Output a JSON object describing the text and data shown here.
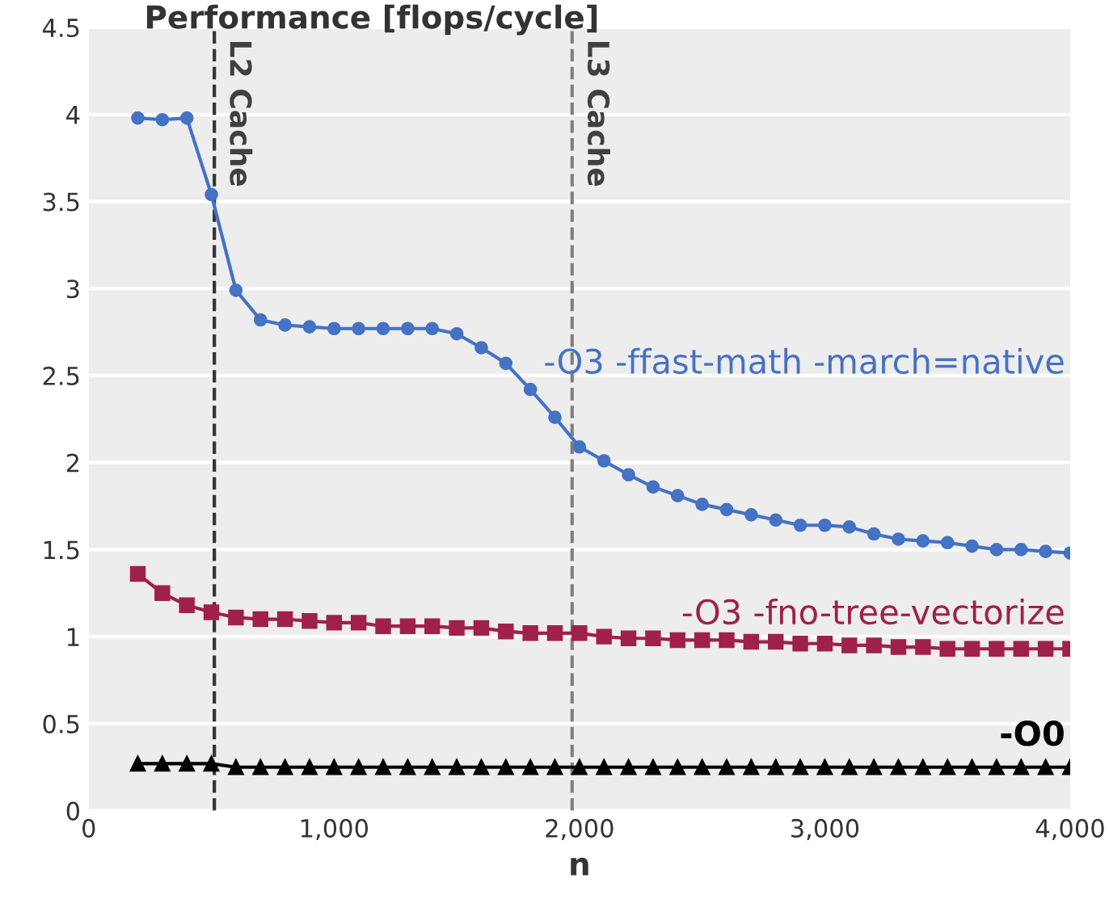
{
  "chart_data": {
    "type": "line",
    "title": "Performance [flops/cycle]",
    "xlabel": "n",
    "x": [
      200,
      300,
      400,
      500,
      600,
      700,
      800,
      900,
      1000,
      1100,
      1200,
      1300,
      1400,
      1500,
      1600,
      1700,
      1800,
      1900,
      2000,
      2100,
      2200,
      2300,
      2400,
      2500,
      2600,
      2700,
      2800,
      2900,
      3000,
      3100,
      3200,
      3300,
      3400,
      3500,
      3600,
      3700,
      3800,
      3900,
      4000
    ],
    "series": [
      {
        "name": "-O3 -ffast-math -march=native",
        "color": "#4472c4",
        "marker": "circle",
        "values": [
          3.98,
          3.97,
          3.98,
          3.54,
          2.99,
          2.82,
          2.79,
          2.78,
          2.77,
          2.77,
          2.77,
          2.77,
          2.77,
          2.74,
          2.66,
          2.57,
          2.42,
          2.26,
          2.09,
          2.01,
          1.93,
          1.86,
          1.81,
          1.76,
          1.73,
          1.7,
          1.67,
          1.64,
          1.64,
          1.63,
          1.59,
          1.56,
          1.55,
          1.54,
          1.52,
          1.5,
          1.5,
          1.49,
          1.48
        ]
      },
      {
        "name": "-O3 -fno-tree-vectorize",
        "color": "#a0204c",
        "marker": "square",
        "values": [
          1.36,
          1.25,
          1.18,
          1.14,
          1.11,
          1.1,
          1.1,
          1.09,
          1.08,
          1.08,
          1.06,
          1.06,
          1.06,
          1.05,
          1.05,
          1.03,
          1.02,
          1.02,
          1.02,
          1.0,
          0.99,
          0.99,
          0.98,
          0.98,
          0.98,
          0.97,
          0.97,
          0.96,
          0.96,
          0.95,
          0.95,
          0.94,
          0.94,
          0.93,
          0.93,
          0.93,
          0.93,
          0.93,
          0.93
        ]
      },
      {
        "name": "-O0",
        "color": "#000000",
        "marker": "triangle",
        "values": [
          0.27,
          0.27,
          0.27,
          0.27,
          0.25,
          0.25,
          0.25,
          0.25,
          0.25,
          0.25,
          0.25,
          0.25,
          0.25,
          0.25,
          0.25,
          0.25,
          0.25,
          0.25,
          0.25,
          0.25,
          0.25,
          0.25,
          0.25,
          0.25,
          0.25,
          0.25,
          0.25,
          0.25,
          0.25,
          0.25,
          0.25,
          0.25,
          0.25,
          0.25,
          0.25,
          0.25,
          0.25,
          0.25,
          0.25
        ]
      }
    ],
    "xlim": [
      0,
      4000
    ],
    "xticks": [
      0,
      {
        "value": 1000,
        "label": "1,000"
      },
      {
        "value": 2000,
        "label": "2,000"
      },
      {
        "value": 3000,
        "label": "3,000"
      },
      {
        "value": 4000,
        "label": "4,000"
      }
    ],
    "ylim": [
      0,
      4.5
    ],
    "yticks": [
      0,
      0.5,
      1,
      1.5,
      2,
      2.5,
      3,
      3.5,
      4,
      4.5
    ],
    "ref_lines": [
      {
        "axis": "x",
        "value": 512,
        "label": "L2 Cache",
        "color": "#333333",
        "line_style": "dashed"
      },
      {
        "axis": "x",
        "value": 1970,
        "label": "L3 Cache",
        "color": "#7f7f7f",
        "line_style": "dashed"
      }
    ],
    "grid": "y",
    "legend": false,
    "line_style": "solid"
  }
}
